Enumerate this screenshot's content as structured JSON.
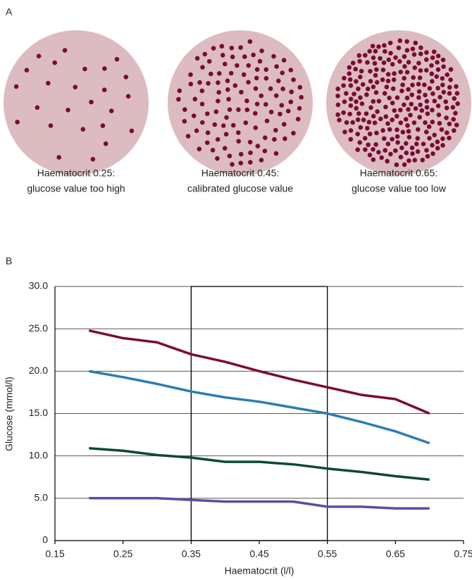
{
  "panel_a": {
    "label": "A",
    "circles": [
      {
        "caption": [
          "Haematocrit 0.25:",
          "glucose value too high"
        ]
      },
      {
        "caption": [
          "Haematocrit 0.45:",
          "calibrated glucose value"
        ]
      },
      {
        "caption": [
          "Haematocrit 0.65:",
          "glucose value too low"
        ]
      }
    ]
  },
  "panel_b": {
    "label": "B"
  },
  "chart_data": {
    "type": "line",
    "x_label": "Haematocrit (l/l)",
    "y_label": "Glucose (mmol/l)",
    "x": [
      0.2,
      0.25,
      0.3,
      0.35,
      0.4,
      0.45,
      0.5,
      0.55,
      0.6,
      0.65,
      0.7
    ],
    "series": [
      {
        "color": "#7a0a36",
        "values": [
          24.8,
          23.9,
          23.4,
          22.0,
          21.1,
          20.0,
          19.0,
          18.1,
          17.2,
          16.7,
          15.0
        ]
      },
      {
        "color": "#2a7db4",
        "values": [
          20.0,
          19.3,
          18.5,
          17.6,
          16.9,
          16.4,
          15.7,
          15.0,
          14.0,
          12.9,
          11.5
        ]
      },
      {
        "color": "#0b4a2c",
        "values": [
          10.9,
          10.6,
          10.1,
          9.8,
          9.3,
          9.3,
          9.0,
          8.5,
          8.1,
          7.6,
          7.2
        ]
      },
      {
        "color": "#5a4ea4",
        "values": [
          5.0,
          5.0,
          5.0,
          4.8,
          4.6,
          4.6,
          4.6,
          4.0,
          4.0,
          3.8,
          3.8
        ]
      }
    ],
    "xlim": [
      0.15,
      0.75
    ],
    "xticks": [
      0.15,
      0.25,
      0.35,
      0.45,
      0.55,
      0.65,
      0.75
    ],
    "ylim": [
      0,
      30
    ],
    "yticks": [
      0,
      {
        "value": 5,
        "label": "5.0"
      },
      {
        "value": 10,
        "label": "10.0"
      },
      {
        "value": 15,
        "label": "15.0"
      },
      {
        "value": 20,
        "label": "20.0"
      },
      {
        "value": 25,
        "label": "25.0"
      },
      {
        "value": 30,
        "label": "30.0"
      }
    ],
    "highlight_xrange": [
      0.35,
      0.55
    ],
    "grid": true
  }
}
